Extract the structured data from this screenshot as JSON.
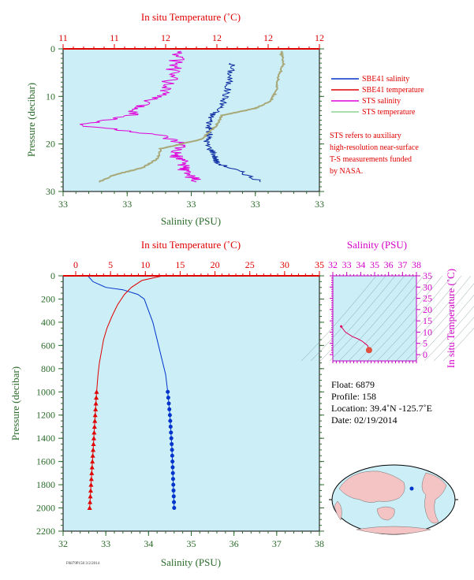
{
  "colors": {
    "plot_bg": "#cbeef7",
    "salinity": "#0033cc",
    "temperature": "#e00000",
    "sts_salinity": "#e000d8",
    "sts_temperature": "#a8a878",
    "red_axis": "#e00000",
    "green_axis": "#2a6a2a",
    "magenta_axis": "#c000c0",
    "land": "#f4c4c4",
    "ocean": "#cbeef7"
  },
  "top_panel": {
    "top_axis_title": "In situ Temperature (˚C)",
    "top_ticks": [
      "11",
      "11",
      "12",
      "12",
      "12",
      "12"
    ],
    "bottom_axis_title": "Salinity (PSU)",
    "bottom_ticks": [
      "33",
      "33",
      "33",
      "33",
      "33"
    ],
    "left_axis_title": "Pressure (decibar)",
    "left_ticks": [
      "0",
      "10",
      "20",
      "30"
    ]
  },
  "legend": {
    "items": [
      {
        "label": "SBE41 salinity",
        "color": "#0033cc"
      },
      {
        "label": "SBE41 temperature",
        "color": "#e00000"
      },
      {
        "label": "STS salinity",
        "color": "#e000d8"
      },
      {
        "label": "STS temperature",
        "color": "#8fd48f"
      }
    ],
    "note_lines": [
      "STS refers to auxiliary",
      "high-resolution near-surface",
      "T-S measurements funded",
      "by NASA."
    ]
  },
  "bottom_panel": {
    "top_axis_title": "In situ Temperature (˚C)",
    "top_ticks": [
      "0",
      "5",
      "10",
      "15",
      "20",
      "25",
      "30",
      "35"
    ],
    "bottom_axis_title": "Salinity (PSU)",
    "bottom_ticks": [
      "32",
      "33",
      "34",
      "35",
      "36",
      "37",
      "38"
    ],
    "left_axis_title": "Pressure (decibar)",
    "left_ticks": [
      "0",
      "200",
      "400",
      "600",
      "800",
      "1000",
      "1200",
      "1400",
      "1600",
      "1800",
      "2000",
      "2200"
    ]
  },
  "ts_panel": {
    "top_axis_title": "Salinity (PSU)",
    "top_ticks": [
      "32",
      "33",
      "34",
      "35",
      "36",
      "37",
      "38"
    ],
    "right_axis_title": "In situ Temperature (˚C)",
    "right_ticks": [
      "35",
      "30",
      "25",
      "20",
      "15",
      "10",
      "5",
      "0"
    ]
  },
  "info": {
    "float": "Float:  6879",
    "profile": "Profile:  158",
    "location": "Location:  39.4˚N  -125.7˚E",
    "date": "Date:  02/19/2014"
  },
  "footer_code": "F6879P158 3/2/2014",
  "chart_data": [
    {
      "type": "line",
      "x_axis": "Salinity (PSU) / In situ Temperature (˚C)",
      "y_axis": "Pressure (decibar)",
      "ylim": [
        30,
        0
      ],
      "series": [
        {
          "name": "SBE41 salinity",
          "pressure": [
            3,
            6,
            9,
            12,
            14,
            16,
            18,
            20,
            22,
            24,
            26,
            28
          ],
          "x_frac": [
            0.66,
            0.65,
            0.64,
            0.62,
            0.58,
            0.57,
            0.57,
            0.56,
            0.59,
            0.6,
            0.7,
            0.77
          ]
        },
        {
          "name": "STS salinity",
          "pressure": [
            0.5,
            3,
            6,
            9,
            12,
            14,
            16,
            18,
            20,
            22,
            24,
            26,
            28
          ],
          "x_frac": [
            0.45,
            0.44,
            0.42,
            0.4,
            0.3,
            0.27,
            0.06,
            0.36,
            0.46,
            0.43,
            0.47,
            0.48,
            0.52
          ]
        },
        {
          "name": "STS temperature",
          "pressure": [
            0.5,
            3,
            6,
            9,
            11,
            12.5,
            14,
            16,
            19,
            21,
            23,
            25,
            26.5,
            28
          ],
          "x_frac": [
            0.85,
            0.86,
            0.84,
            0.83,
            0.81,
            0.75,
            0.62,
            0.6,
            0.54,
            0.38,
            0.37,
            0.31,
            0.2,
            0.14
          ]
        }
      ]
    },
    {
      "type": "line",
      "x_axis": "Salinity (PSU)",
      "y_axis": "Pressure (decibar)",
      "xlim": [
        32,
        38
      ],
      "ylim": [
        2200,
        0
      ],
      "series": [
        {
          "name": "Salinity (PSU)",
          "x": [
            32.58,
            32.7,
            33.0,
            33.4,
            33.75,
            33.9,
            34.0,
            34.1,
            34.2,
            34.3,
            34.4,
            34.45,
            34.5,
            34.55,
            34.58,
            34.6
          ],
          "y": [
            0,
            50,
            100,
            120,
            160,
            200,
            300,
            400,
            550,
            700,
            850,
            1000,
            1200,
            1500,
            1800,
            2000
          ]
        }
      ]
    },
    {
      "type": "line",
      "x_axis": "In situ Temperature (˚C)",
      "y_axis": "Pressure (decibar)",
      "xlim": [
        0,
        35
      ],
      "ylim": [
        2200,
        0
      ],
      "series": [
        {
          "name": "In situ Temperature (˚C)",
          "x": [
            12.5,
            9.5,
            8.0,
            7.0,
            6.0,
            5.2,
            4.5,
            4.0,
            3.7,
            3.4,
            3.2,
            3.0,
            2.8,
            2.5,
            2.2,
            2.0
          ],
          "y": [
            0,
            40,
            100,
            160,
            250,
            350,
            450,
            550,
            650,
            750,
            850,
            1000,
            1200,
            1500,
            1800,
            2000
          ]
        }
      ]
    },
    {
      "type": "scatter",
      "x_axis": "Salinity (PSU)",
      "y_axis": "In situ Temperature (˚C)",
      "xlim": [
        32,
        38
      ],
      "ylim": [
        -2,
        35
      ],
      "series": [
        {
          "name": "T-S profile",
          "x": [
            32.6,
            32.9,
            33.4,
            33.8,
            34.1,
            34.3,
            34.5,
            34.6
          ],
          "y": [
            12.5,
            10,
            8,
            7,
            6,
            5,
            4,
            2
          ]
        }
      ]
    }
  ]
}
